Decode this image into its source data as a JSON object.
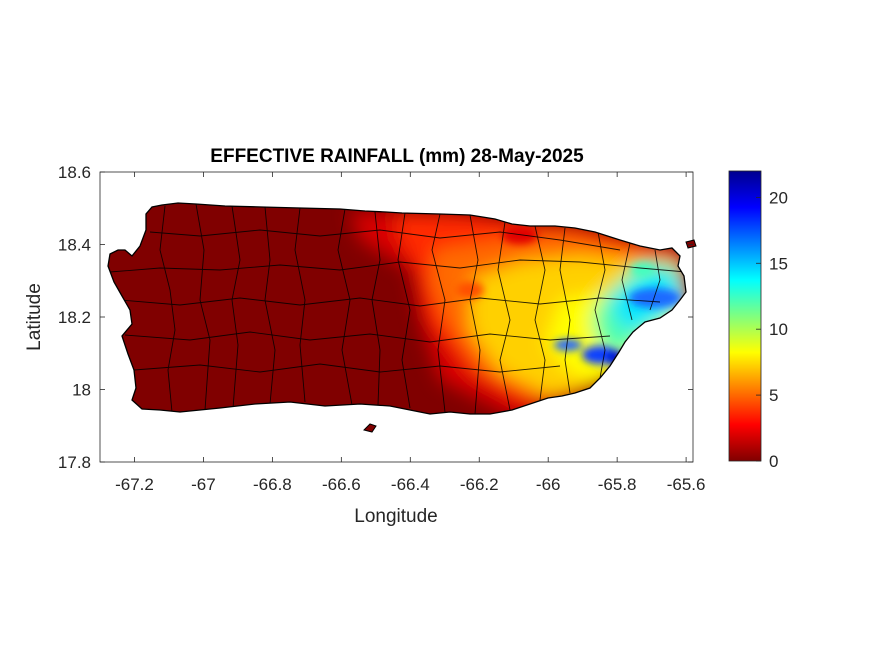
{
  "map": {
    "title": "EFFECTIVE RAINFALL (mm) 28-May-2025",
    "xlabel": "Longitude",
    "ylabel": "Latitude",
    "xlim": [
      -67.3,
      -65.58
    ],
    "ylim": [
      17.8,
      18.6
    ],
    "xticks": [
      -67.2,
      -67,
      -66.8,
      -66.6,
      -66.4,
      -66.2,
      -66,
      -65.8,
      -65.6
    ],
    "xtick_labels": [
      "-67.2",
      "-67",
      "-66.8",
      "-66.6",
      "-66.4",
      "-66.2",
      "-66",
      "-65.8",
      "-65.6"
    ],
    "yticks": [
      17.8,
      18,
      18.2,
      18.4,
      18.6
    ],
    "ytick_labels": [
      "17.8",
      "18",
      "18.2",
      "18.4",
      "18.6"
    ],
    "colormap": "jet",
    "colors": {
      "low": "#800000",
      "high": "#00008f",
      "coast": "#000000"
    }
  },
  "colorbar": {
    "range": [
      0,
      22
    ],
    "ticks": [
      0,
      5,
      10,
      15,
      20
    ],
    "tick_labels": [
      "0",
      "5",
      "10",
      "15",
      "20"
    ]
  }
}
